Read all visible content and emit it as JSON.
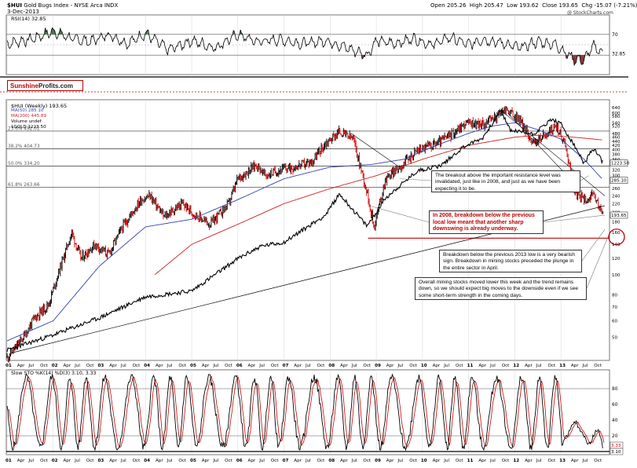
{
  "header": {
    "symbol": "$HUI",
    "name": "Gold Bugs Index - NYSE Arca INDX",
    "date": "3-Dec-2013",
    "source": "@ StockCharts.com",
    "open_label": "Open",
    "open": "205.26",
    "high_label": "High",
    "high": "205.47",
    "low_label": "Low",
    "low": "193.62",
    "close_label": "Close",
    "close": "193.65",
    "chg_label": "Chg",
    "chg": "-15.07 (-7.21%)"
  },
  "brand": {
    "part1": "Sunshine",
    "part2": "Profits",
    "part3": ".com"
  },
  "legend": {
    "rsi": "RSI(14) 32.85",
    "main": "$HUI (Weekly) 193.65",
    "ma50": "MA(50) 285.10",
    "ma200": "MA(200) 445.89",
    "volume": "Volume undef",
    "gold": "$GOLD 1223.50",
    "stoch": "Slow STO %K(14) %D(3) 3.10, 3.33"
  },
  "annotations": {
    "breakout": "The breakout above the important resistance level was invalidated, just like in 2008, and just as we have been expecting it to be.",
    "breakdown2008": "In 2008, breakdown below the previous local low meant that another sharp downswing is already underway.",
    "breakdown2013": "Breakdown below the previous 2013 low is a very bearish sign. Breakdown in mining stocks preceded the plunge in the entire sector in April.",
    "overall": "Overall mining stocks moved lower this week and the trend remains down, so we should expect big moves to the downside even if we see some short-term strength in the coming days."
  },
  "colors": {
    "price": "#000000",
    "up_bar": "#000000",
    "down_bar": "#cc0000",
    "ma50": "#3344aa",
    "ma200": "#cc2222",
    "gold": "#000000",
    "rsi": "#000000",
    "rsi_fill": "#4a7a4a",
    "rsi_oversold_fill": "#8a3a3a",
    "stoch_k": "#000000",
    "stoch_d": "#cc0000",
    "annotation_red": "#c00000"
  },
  "chart_data": [
    {
      "type": "line",
      "panel": "rsi",
      "title": "RSI(14)",
      "ylim": [
        0,
        100
      ],
      "levels": [
        70,
        30
      ],
      "y_tick_labels": [
        "70",
        "32.85"
      ],
      "last_value": 32.85,
      "x": [
        2001.0,
        2001.5,
        2002.0,
        2002.4,
        2002.8,
        2003.2,
        2003.6,
        2004.0,
        2004.5,
        2005.0,
        2005.5,
        2006.0,
        2006.4,
        2006.9,
        2007.4,
        2007.9,
        2008.3,
        2008.6,
        2008.8,
        2009.0,
        2009.4,
        2009.8,
        2010.2,
        2010.6,
        2011.0,
        2011.3,
        2011.7,
        2012.1,
        2012.5,
        2012.9,
        2013.1,
        2013.3,
        2013.5,
        2013.7,
        2013.92
      ],
      "values": [
        52,
        60,
        76,
        62,
        56,
        70,
        52,
        72,
        40,
        58,
        44,
        70,
        56,
        60,
        52,
        58,
        46,
        36,
        30,
        58,
        52,
        62,
        50,
        64,
        50,
        60,
        54,
        44,
        56,
        50,
        34,
        22,
        20,
        48,
        32.85
      ]
    },
    {
      "type": "line",
      "panel": "price",
      "title": "$HUI (Weekly)",
      "scale": "log",
      "ylim": [
        40,
        650
      ],
      "y_tick_labels": [
        "640",
        "600",
        "580",
        "540",
        "520",
        "480",
        "460",
        "440",
        "420",
        "400",
        "380",
        "360",
        "340",
        "320",
        "300",
        "280",
        "260",
        "240",
        "220",
        "200",
        "180",
        "160",
        "140",
        "120",
        "100",
        "80",
        "70",
        "60",
        "50"
      ],
      "levels": [
        {
          "label": "23.6%",
          "value": 492.01
        },
        {
          "label": "38.2%",
          "value": 404.73
        },
        {
          "label": "50.0%",
          "value": 334.2
        },
        {
          "label": "61.8%",
          "value": 263.66
        }
      ],
      "right_labels": [
        "1223.50",
        "285.10",
        "193.65"
      ],
      "x_tick_labels": [
        "01",
        "Apr",
        "Jul",
        "Oct",
        "02",
        "Apr",
        "Jul",
        "Oct",
        "03",
        "Apr",
        "Jul",
        "Oct",
        "04",
        "Apr",
        "Jul",
        "Oct",
        "05",
        "Apr",
        "Jul",
        "Oct",
        "06",
        "Apr",
        "Jul",
        "Oct",
        "07",
        "Apr",
        "Jul",
        "Oct",
        "08",
        "Apr",
        "Jul",
        "Oct",
        "09",
        "Apr",
        "Jul",
        "Oct",
        "10",
        "Apr",
        "Jul",
        "Oct",
        "11",
        "Apr",
        "Jul",
        "Oct",
        "12",
        "Apr",
        "Jul",
        "Oct",
        "13",
        "Apr",
        "Jul",
        "Oct"
      ],
      "x": [
        2001.0,
        2001.3,
        2001.6,
        2001.9,
        2002.1,
        2002.4,
        2002.6,
        2002.9,
        2003.2,
        2003.5,
        2003.9,
        2004.1,
        2004.4,
        2004.8,
        2005.0,
        2005.4,
        2005.8,
        2006.0,
        2006.4,
        2006.6,
        2006.9,
        2007.2,
        2007.6,
        2007.9,
        2008.2,
        2008.5,
        2008.8,
        2008.95,
        2009.2,
        2009.5,
        2009.9,
        2010.3,
        2010.6,
        2010.95,
        2011.3,
        2011.6,
        2011.8,
        2012.1,
        2012.4,
        2012.7,
        2012.9,
        2013.1,
        2013.3,
        2013.5,
        2013.7,
        2013.92
      ],
      "values": [
        40,
        48,
        62,
        72,
        100,
        160,
        120,
        140,
        125,
        170,
        230,
        240,
        190,
        220,
        200,
        175,
        220,
        290,
        340,
        300,
        320,
        330,
        350,
        430,
        490,
        450,
        250,
        170,
        290,
        330,
        400,
        430,
        470,
        540,
        530,
        580,
        630,
        560,
        430,
        480,
        520,
        420,
        250,
        230,
        240,
        193.65
      ]
    },
    {
      "type": "line",
      "panel": "price",
      "series": "MA(50)",
      "x": [
        2001.0,
        2002.0,
        2003.0,
        2004.0,
        2005.0,
        2006.0,
        2007.0,
        2008.0,
        2008.9,
        2009.6,
        2010.3,
        2011.0,
        2011.5,
        2012.0,
        2012.5,
        2013.0,
        2013.5,
        2013.92
      ],
      "values": [
        48,
        60,
        110,
        170,
        185,
        230,
        290,
        330,
        340,
        360,
        420,
        480,
        520,
        540,
        500,
        450,
        360,
        285.1
      ]
    },
    {
      "type": "line",
      "panel": "price",
      "series": "MA(200)",
      "x": [
        2004.2,
        2005.0,
        2006.0,
        2007.0,
        2008.0,
        2009.0,
        2010.0,
        2011.0,
        2012.0,
        2012.5,
        2013.0,
        2013.5,
        2013.92
      ],
      "values": [
        100,
        140,
        175,
        220,
        260,
        300,
        360,
        420,
        460,
        470,
        465,
        455,
        445.89
      ]
    },
    {
      "type": "line",
      "panel": "price",
      "series": "$GOLD",
      "x": [
        2001.0,
        2002.0,
        2003.0,
        2004.0,
        2005.0,
        2006.0,
        2006.5,
        2007.0,
        2007.9,
        2008.2,
        2008.8,
        2009.2,
        2009.9,
        2010.4,
        2010.9,
        2011.3,
        2011.7,
        2011.9,
        2012.4,
        2012.8,
        2013.0,
        2013.3,
        2013.5,
        2013.7,
        2013.92
      ],
      "values": [
        265,
        300,
        345,
        410,
        430,
        560,
        620,
        640,
        800,
        950,
        730,
        920,
        1150,
        1200,
        1400,
        1500,
        1880,
        1600,
        1550,
        1750,
        1680,
        1400,
        1220,
        1380,
        1223.5
      ]
    },
    {
      "type": "line",
      "panel": "stochastic",
      "title": "Slow STO %K(14) %D(3)",
      "ylim": [
        0,
        100
      ],
      "levels": [
        80,
        20
      ],
      "y_tick_labels": [
        "80",
        "60",
        "40",
        "20"
      ],
      "right_labels": [
        "3.33",
        "3.10"
      ],
      "x_tick_labels": [
        "01",
        "Apr",
        "Jul",
        "Oct",
        "02",
        "Apr",
        "Jul",
        "Oct",
        "03",
        "Apr",
        "Jul",
        "Oct",
        "04",
        "Apr",
        "Jul",
        "Oct",
        "05",
        "Apr",
        "Jul",
        "Oct",
        "06",
        "Apr",
        "Jul",
        "Oct",
        "07",
        "Apr",
        "Jul",
        "Oct",
        "08",
        "Apr",
        "Jul",
        "Oct",
        "09",
        "Apr",
        "Jul",
        "Oct",
        "10",
        "Apr",
        "Jul",
        "Oct",
        "11",
        "Apr",
        "Jul",
        "Oct",
        "12",
        "Apr",
        "Jul",
        "Oct",
        "13",
        "Apr",
        "Jul",
        "Oct"
      ],
      "x": [
        2001.0,
        2001.4,
        2001.8,
        2002.2,
        2002.6,
        2003.0,
        2003.4,
        2003.8,
        2004.2,
        2004.6,
        2005.0,
        2005.4,
        2005.8,
        2006.2,
        2006.6,
        2007.0,
        2007.4,
        2007.8,
        2008.2,
        2008.6,
        2009.0,
        2009.4,
        2009.8,
        2010.2,
        2010.6,
        2011.0,
        2011.4,
        2011.8,
        2012.2,
        2012.6,
        2013.0,
        2013.3,
        2013.6,
        2013.8,
        2013.92
      ],
      "series_k": [
        20,
        90,
        30,
        95,
        15,
        85,
        25,
        90,
        20,
        80,
        10,
        85,
        30,
        95,
        20,
        85,
        15,
        90,
        10,
        80,
        20,
        90,
        30,
        85,
        15,
        90,
        25,
        80,
        10,
        85,
        5,
        40,
        8,
        30,
        3.1
      ],
      "series_d": [
        25,
        85,
        35,
        90,
        20,
        80,
        30,
        85,
        25,
        75,
        15,
        80,
        35,
        90,
        25,
        80,
        20,
        85,
        15,
        75,
        25,
        85,
        35,
        80,
        20,
        85,
        30,
        75,
        15,
        80,
        8,
        35,
        10,
        28,
        3.33
      ]
    }
  ]
}
